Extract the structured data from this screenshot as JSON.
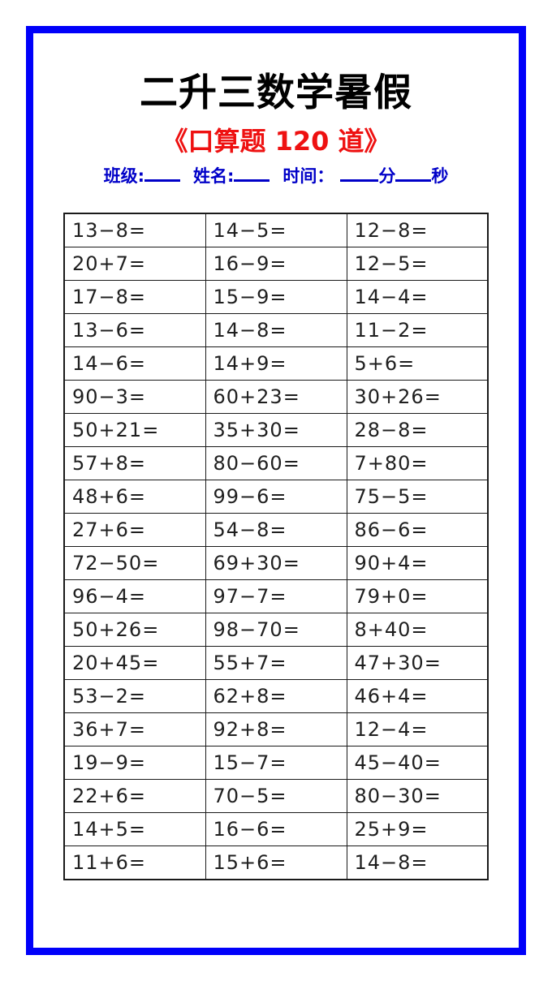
{
  "header": {
    "title": "二升三数学暑假",
    "subtitle": "《口算题 120 道》"
  },
  "info": {
    "class_label": "班级:",
    "name_label": "姓名:",
    "time_label": "时间：",
    "minutes_label": "分",
    "seconds_label": "秒"
  },
  "colors": {
    "frame_blue": "#0000fa",
    "info_blue": "#0000c8",
    "subtitle_red": "#ee1111",
    "grid_black": "#1a1a1a"
  },
  "problems": {
    "rows": [
      [
        "13−8=",
        "14−5=",
        "12−8="
      ],
      [
        "20+7=",
        "16−9=",
        "12−5="
      ],
      [
        "17−8=",
        "15−9=",
        "14−4="
      ],
      [
        "13−6=",
        "14−8=",
        "11−2="
      ],
      [
        "14−6=",
        "14+9=",
        "5+6="
      ],
      [
        "90−3=",
        "60+23=",
        "30+26="
      ],
      [
        "50+21=",
        "35+30=",
        "28−8="
      ],
      [
        "57+8=",
        "80−60=",
        "7+80="
      ],
      [
        "48+6=",
        "99−6=",
        "75−5="
      ],
      [
        "27+6=",
        "54−8=",
        "86−6="
      ],
      [
        "72−50=",
        "69+30=",
        "90+4="
      ],
      [
        "96−4=",
        "97−7=",
        "79+0="
      ],
      [
        "50+26=",
        "98−70=",
        "8+40="
      ],
      [
        "20+45=",
        "55+7=",
        "47+30="
      ],
      [
        "53−2=",
        "62+8=",
        "46+4="
      ],
      [
        "36+7=",
        "92+8=",
        "12−4="
      ],
      [
        "19−9=",
        "15−7=",
        "45−40="
      ],
      [
        "22+6=",
        "70−5=",
        "80−30="
      ],
      [
        "14+5=",
        "16−6=",
        "25+9="
      ],
      [
        "11+6=",
        "15+6=",
        "14−8="
      ]
    ]
  }
}
